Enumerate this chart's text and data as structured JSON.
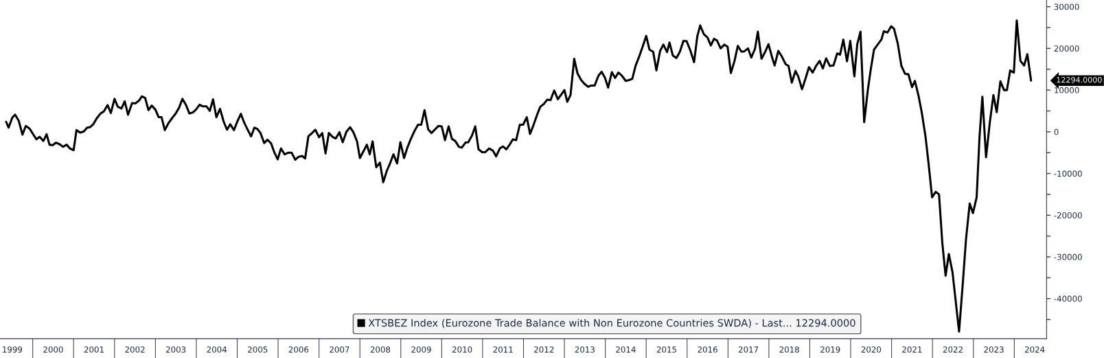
{
  "chart_data": {
    "type": "line",
    "x": [
      1999.35,
      1999.41,
      1999.5,
      1999.57,
      1999.66,
      1999.75,
      1999.83,
      1999.92,
      2000.09,
      2000.17,
      2000.26,
      2000.34,
      2000.41,
      2000.49,
      2000.57,
      2000.66,
      2000.74,
      2000.83,
      2000.91,
      2001.0,
      2001.07,
      2001.16,
      2001.25,
      2001.33,
      2001.4,
      2001.48,
      2001.57,
      2001.66,
      2001.74,
      2001.83,
      2001.91,
      2002.0,
      2002.08,
      2002.17,
      2002.25,
      2002.33,
      2002.43,
      2002.51,
      2002.6,
      2002.67,
      2002.75,
      2002.83,
      2002.91,
      2003.0,
      2003.08,
      2003.15,
      2003.23,
      2003.32,
      2003.41,
      2003.49,
      2003.58,
      2003.66,
      2003.75,
      2003.83,
      2003.91,
      2003.99,
      2004.08,
      2004.16,
      2004.25,
      2004.33,
      2004.41,
      2004.49,
      2004.58,
      2004.67,
      2004.75,
      2004.83,
      2004.92,
      2005.0,
      2005.09,
      2005.17,
      2005.26,
      2005.34,
      2005.42,
      2005.49,
      2005.57,
      2005.66,
      2005.74,
      2005.83,
      2005.91,
      2005.99,
      2006.07,
      2006.16,
      2006.25,
      2006.33,
      2006.42,
      2006.5,
      2006.59,
      2006.66,
      2006.74,
      2006.83,
      2006.91,
      2007.0,
      2007.08,
      2007.16,
      2007.24,
      2007.33,
      2007.41,
      2007.5,
      2007.58,
      2007.67,
      2007.76,
      2007.84,
      2007.93,
      2008.0,
      2008.08,
      2008.17,
      2008.24,
      2008.31,
      2008.4,
      2008.49,
      2008.57,
      2008.66,
      2008.74,
      2008.82,
      2008.91,
      2008.99,
      2009.08,
      2009.16,
      2009.25,
      2009.33,
      2009.42,
      2009.5,
      2009.58,
      2009.67,
      2009.75,
      2009.84,
      2009.92,
      2010.0,
      2010.08,
      2010.17,
      2010.25,
      2010.33,
      2010.42,
      2010.49,
      2010.58,
      2010.65,
      2010.74,
      2010.82,
      2010.9,
      2010.99,
      2011.06,
      2011.16,
      2011.25,
      2011.33,
      2011.42,
      2011.5,
      2011.58,
      2011.66,
      2011.74,
      2011.82,
      2011.91,
      2011.99,
      2012.08,
      2012.16,
      2012.24,
      2012.33,
      2012.41,
      2012.5,
      2012.58,
      2012.66,
      2012.75,
      2012.84,
      2012.92,
      2013.0,
      2013.07,
      2013.15,
      2013.24,
      2013.32,
      2013.41,
      2013.49,
      2013.58,
      2013.66,
      2013.74,
      2013.83,
      2013.91,
      2013.99,
      2014.07,
      2014.16,
      2014.24,
      2014.32,
      2014.41,
      2014.5,
      2014.58,
      2014.66,
      2014.74,
      2014.83,
      2014.91,
      2015.0,
      2015.08,
      2015.17,
      2015.25,
      2015.34,
      2015.42,
      2015.51,
      2015.57,
      2015.65,
      2015.74,
      2015.82,
      2015.91,
      2015.99,
      2016.08,
      2016.17,
      2016.25,
      2016.32,
      2016.41,
      2016.5,
      2016.58,
      2016.66,
      2016.73,
      2016.82,
      2016.91,
      2016.99,
      2017.07,
      2017.16,
      2017.24,
      2017.33,
      2017.4,
      2017.49,
      2017.57,
      2017.66,
      2017.73,
      2017.82,
      2017.91,
      2017.99,
      2018.08,
      2018.14,
      2018.23,
      2018.32,
      2018.41,
      2018.48,
      2018.56,
      2018.65,
      2018.72,
      2018.81,
      2018.9,
      2018.98,
      2019.07,
      2019.16,
      2019.24,
      2019.32,
      2019.4,
      2019.49,
      2019.58,
      2019.67,
      2019.74,
      2019.82,
      2019.91,
      2019.99,
      2020.09,
      2020.16,
      2020.24,
      2020.33,
      2020.42,
      2020.49,
      2020.57,
      2020.66,
      2020.75,
      2020.81,
      2020.9,
      2020.99,
      2021.06,
      2021.15,
      2021.24,
      2021.33,
      2021.41,
      2021.5,
      2021.57,
      2021.66,
      2021.74,
      2021.83,
      2021.9,
      2021.99,
      2022.08,
      2022.16,
      2022.24,
      2022.32,
      2022.4,
      2022.49,
      2022.65,
      2022.74,
      2022.82,
      2022.91,
      2022.99,
      2023.08,
      2023.15,
      2023.22,
      2023.31,
      2023.4,
      2023.49,
      2023.57,
      2023.66,
      2023.75,
      2023.82,
      2023.9,
      2023.99,
      2024.06,
      2024.15,
      2024.24,
      2024.32,
      2024.41
    ],
    "series": [
      {
        "name": "XTSBEZ Index (Eurozone Trade Balance with Non Eurozone Countries SWDA) - Last... 12294.0000",
        "color": "#000000",
        "values": [
          2400,
          1000,
          3400,
          4100,
          2600,
          -700,
          1400,
          800,
          -1800,
          -1200,
          -2200,
          -600,
          -3100,
          -3200,
          -2600,
          -3000,
          -3600,
          -3100,
          -4000,
          -4400,
          400,
          -200,
          100,
          1000,
          1100,
          1800,
          3300,
          4400,
          4900,
          6400,
          4500,
          7900,
          6000,
          5600,
          7300,
          4100,
          6900,
          6800,
          7500,
          8500,
          8100,
          5200,
          6300,
          5300,
          3500,
          3500,
          400,
          2100,
          3300,
          4300,
          5800,
          7900,
          6400,
          4400,
          4600,
          5300,
          6500,
          6100,
          6100,
          5000,
          7800,
          3500,
          5500,
          2400,
          500,
          1800,
          400,
          2400,
          4300,
          2200,
          400,
          -1100,
          1000,
          700,
          -300,
          -2700,
          -1900,
          -2800,
          -5000,
          -6600,
          -4000,
          -5400,
          -5000,
          -5000,
          -6700,
          -6000,
          -5800,
          -6400,
          -1100,
          -300,
          500,
          -1300,
          -300,
          -5200,
          -300,
          -1200,
          -1600,
          -100,
          -2500,
          0,
          1100,
          -100,
          -2300,
          -6300,
          -4800,
          -3100,
          -5400,
          -2300,
          -8500,
          -7400,
          -12100,
          -9300,
          -7500,
          -5400,
          -7600,
          -2500,
          -6300,
          -3800,
          -1600,
          100,
          1700,
          1700,
          5200,
          600,
          -300,
          600,
          1400,
          1300,
          -2000,
          1300,
          -1700,
          -2200,
          -3600,
          -3800,
          -2600,
          -2500,
          -900,
          1300,
          -4200,
          -4900,
          -4900,
          -4000,
          -4500,
          -5900,
          -4000,
          -3500,
          -4200,
          -3100,
          -1800,
          -2000,
          1700,
          1700,
          3500,
          -500,
          1500,
          4000,
          6000,
          6700,
          7700,
          7600,
          9900,
          7800,
          8900,
          10000,
          7200,
          8800,
          17500,
          14000,
          12400,
          11500,
          10800,
          11100,
          11100,
          13400,
          14400,
          13000,
          10600,
          14300,
          12900,
          14200,
          13400,
          12200,
          12400,
          12700,
          15800,
          18100,
          20300,
          23000,
          19700,
          19200,
          14700,
          19400,
          20900,
          19100,
          21400,
          18300,
          17700,
          19100,
          21800,
          21700,
          19500,
          16700,
          22900,
          25500,
          23400,
          22600,
          20700,
          22300,
          21900,
          20000,
          20900,
          20400,
          14100,
          17000,
          20600,
          19200,
          19300,
          20000,
          17800,
          19900,
          24000,
          17500,
          19200,
          21000,
          17800,
          15900,
          19400,
          18000,
          16200,
          15800,
          11800,
          14600,
          13200,
          10200,
          12900,
          15500,
          14200,
          15900,
          17000,
          15200,
          17600,
          15800,
          15900,
          18800,
          18500,
          22100,
          16900,
          21800,
          13300,
          21000,
          24000,
          2300,
          10100,
          14900,
          19700,
          20900,
          22100,
          24100,
          23800,
          25300,
          24700,
          21200,
          15800,
          13900,
          13800,
          10700,
          12200,
          8600,
          4500,
          -1200,
          -7200,
          -15700,
          -14400,
          -15000,
          -26600,
          -34500,
          -29300,
          -33700,
          -47900,
          -36500,
          -25700,
          -17200,
          -19500,
          -15700,
          -1200,
          8400,
          -6100,
          2100,
          8800,
          4700,
          12100,
          10000,
          10000,
          14700,
          14200,
          26700,
          17000,
          15900,
          18600,
          12294
        ]
      }
    ],
    "xlim": [
      1999.2,
      2024.79
    ],
    "ylim": [
      -49600,
      31600
    ],
    "xticks": [
      {
        "value": 1999.5,
        "label": "1999"
      },
      {
        "value": 2000.5,
        "label": "2000"
      },
      {
        "value": 2001.5,
        "label": "2001"
      },
      {
        "value": 2002.5,
        "label": "2002"
      },
      {
        "value": 2003.5,
        "label": "2003"
      },
      {
        "value": 2004.5,
        "label": "2004"
      },
      {
        "value": 2005.5,
        "label": "2005"
      },
      {
        "value": 2006.5,
        "label": "2006"
      },
      {
        "value": 2007.5,
        "label": "2007"
      },
      {
        "value": 2008.5,
        "label": "2008"
      },
      {
        "value": 2009.5,
        "label": "2009"
      },
      {
        "value": 2010.5,
        "label": "2010"
      },
      {
        "value": 2011.5,
        "label": "2011"
      },
      {
        "value": 2012.5,
        "label": "2012"
      },
      {
        "value": 2013.5,
        "label": "2013"
      },
      {
        "value": 2014.5,
        "label": "2014"
      },
      {
        "value": 2015.5,
        "label": "2015"
      },
      {
        "value": 2016.5,
        "label": "2016"
      },
      {
        "value": 2017.5,
        "label": "2017"
      },
      {
        "value": 2018.5,
        "label": "2018"
      },
      {
        "value": 2019.5,
        "label": "2019"
      },
      {
        "value": 2020.5,
        "label": "2020"
      },
      {
        "value": 2021.5,
        "label": "2021"
      },
      {
        "value": 2022.5,
        "label": "2022"
      },
      {
        "value": 2023.5,
        "label": "2023"
      },
      {
        "value": 2024.5,
        "label": "2024"
      }
    ],
    "yticks": [
      30000,
      {
        "value": 25000,
        "label": null
      },
      20000,
      {
        "value": 15000,
        "label": null
      },
      10000,
      {
        "value": 5000,
        "label": null
      },
      0,
      {
        "value": -5000,
        "label": null
      },
      -10000,
      {
        "value": -15000,
        "label": null
      },
      -20000,
      {
        "value": -25000,
        "label": null
      },
      -30000,
      {
        "value": -35000,
        "label": null
      },
      -40000,
      {
        "value": -45000,
        "label": null
      }
    ],
    "annotations": [
      "12294.0000"
    ],
    "legend": "bottom",
    "grid": false,
    "line_style": "solid",
    "marker": "none"
  }
}
